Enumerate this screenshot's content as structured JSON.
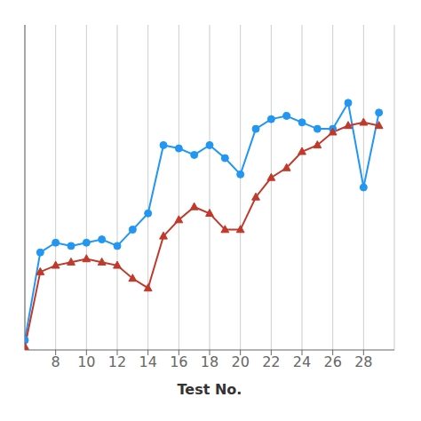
{
  "chart_data": {
    "type": "line",
    "xlabel": "Test No.",
    "x": [
      6,
      7,
      8,
      9,
      10,
      11,
      12,
      13,
      14,
      15,
      16,
      17,
      18,
      19,
      20,
      21,
      22,
      23,
      24,
      25,
      26,
      27,
      28,
      29
    ],
    "series": [
      {
        "color": "#2196F3",
        "marker": "circle",
        "values": [
          0.03,
          0.3,
          0.33,
          0.32,
          0.33,
          0.34,
          0.32,
          0.37,
          0.42,
          0.63,
          0.62,
          0.6,
          0.63,
          0.59,
          0.54,
          0.68,
          0.71,
          0.72,
          0.7,
          0.68,
          0.68,
          0.76,
          0.5,
          0.73
        ]
      },
      {
        "color": "#C0392B",
        "marker": "triangle",
        "values": [
          0.01,
          0.24,
          0.26,
          0.27,
          0.28,
          0.27,
          0.26,
          0.22,
          0.19,
          0.35,
          0.4,
          0.44,
          0.42,
          0.37,
          0.37,
          0.47,
          0.53,
          0.56,
          0.61,
          0.63,
          0.67,
          0.69,
          0.7,
          0.69
        ]
      }
    ],
    "xlim": [
      6,
      30
    ],
    "xticks": [
      8,
      10,
      12,
      14,
      16,
      18,
      20,
      22,
      24,
      26,
      28
    ],
    "ylim": [
      0,
      1.0
    ],
    "yticks": [],
    "grid": true,
    "tick_labels": "x"
  }
}
